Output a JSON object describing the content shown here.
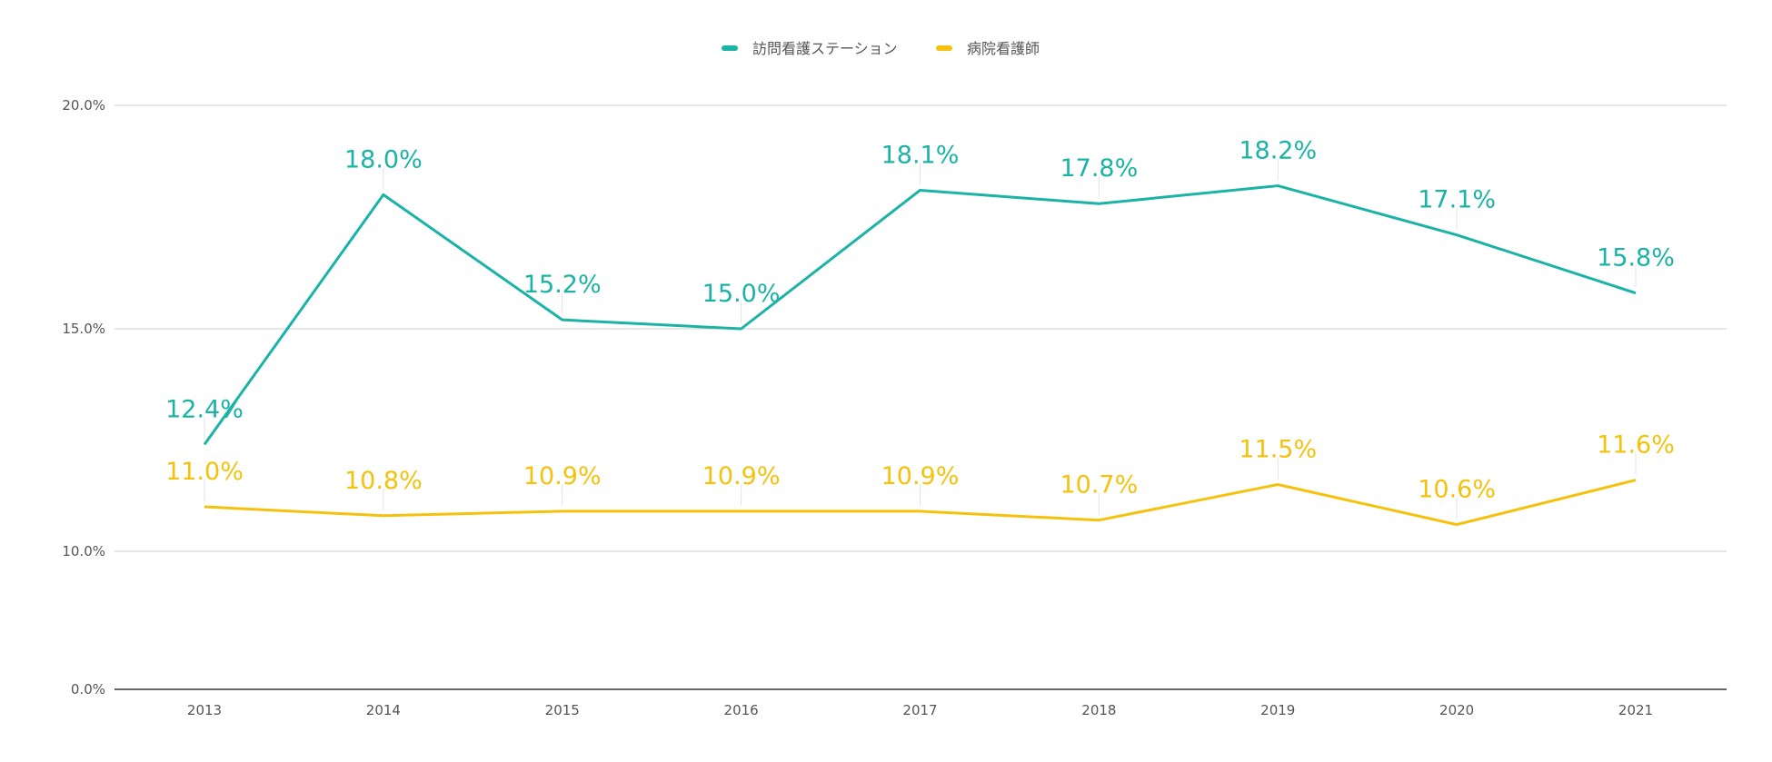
{
  "chart_data": {
    "type": "line",
    "title": "",
    "xlabel": "",
    "ylabel": "",
    "categories": [
      "2013",
      "2014",
      "2015",
      "2016",
      "2017",
      "2018",
      "2019",
      "2020",
      "2021"
    ],
    "series": [
      {
        "name": "訪問看護ステーション",
        "color": "#1ab3a6",
        "values": [
          12.4,
          18.0,
          15.2,
          15.0,
          18.1,
          17.8,
          18.2,
          17.1,
          15.8
        ],
        "labels": [
          "12.4%",
          "18.0%",
          "15.2%",
          "15.0%",
          "18.1%",
          "17.8%",
          "18.2%",
          "17.1%",
          "15.8%"
        ]
      },
      {
        "name": "病院看護師",
        "color": "#f4c20d",
        "values": [
          11.0,
          10.8,
          10.9,
          10.9,
          10.9,
          10.7,
          11.5,
          10.6,
          11.6
        ],
        "labels": [
          "11.0%",
          "10.8%",
          "10.9%",
          "10.9%",
          "10.9%",
          "10.7%",
          "11.5%",
          "10.6%",
          "11.6%"
        ]
      }
    ],
    "y_ticks": [
      0,
      10,
      15,
      20
    ],
    "y_tick_labels": [
      "0.0%",
      "10.0%",
      "15.0%",
      "20.0%"
    ],
    "ylim": [
      0,
      20
    ],
    "y_scale": "piecewise (0–10 compressed, 10–20 linear)",
    "grid": true,
    "legend_position": "top-center"
  }
}
